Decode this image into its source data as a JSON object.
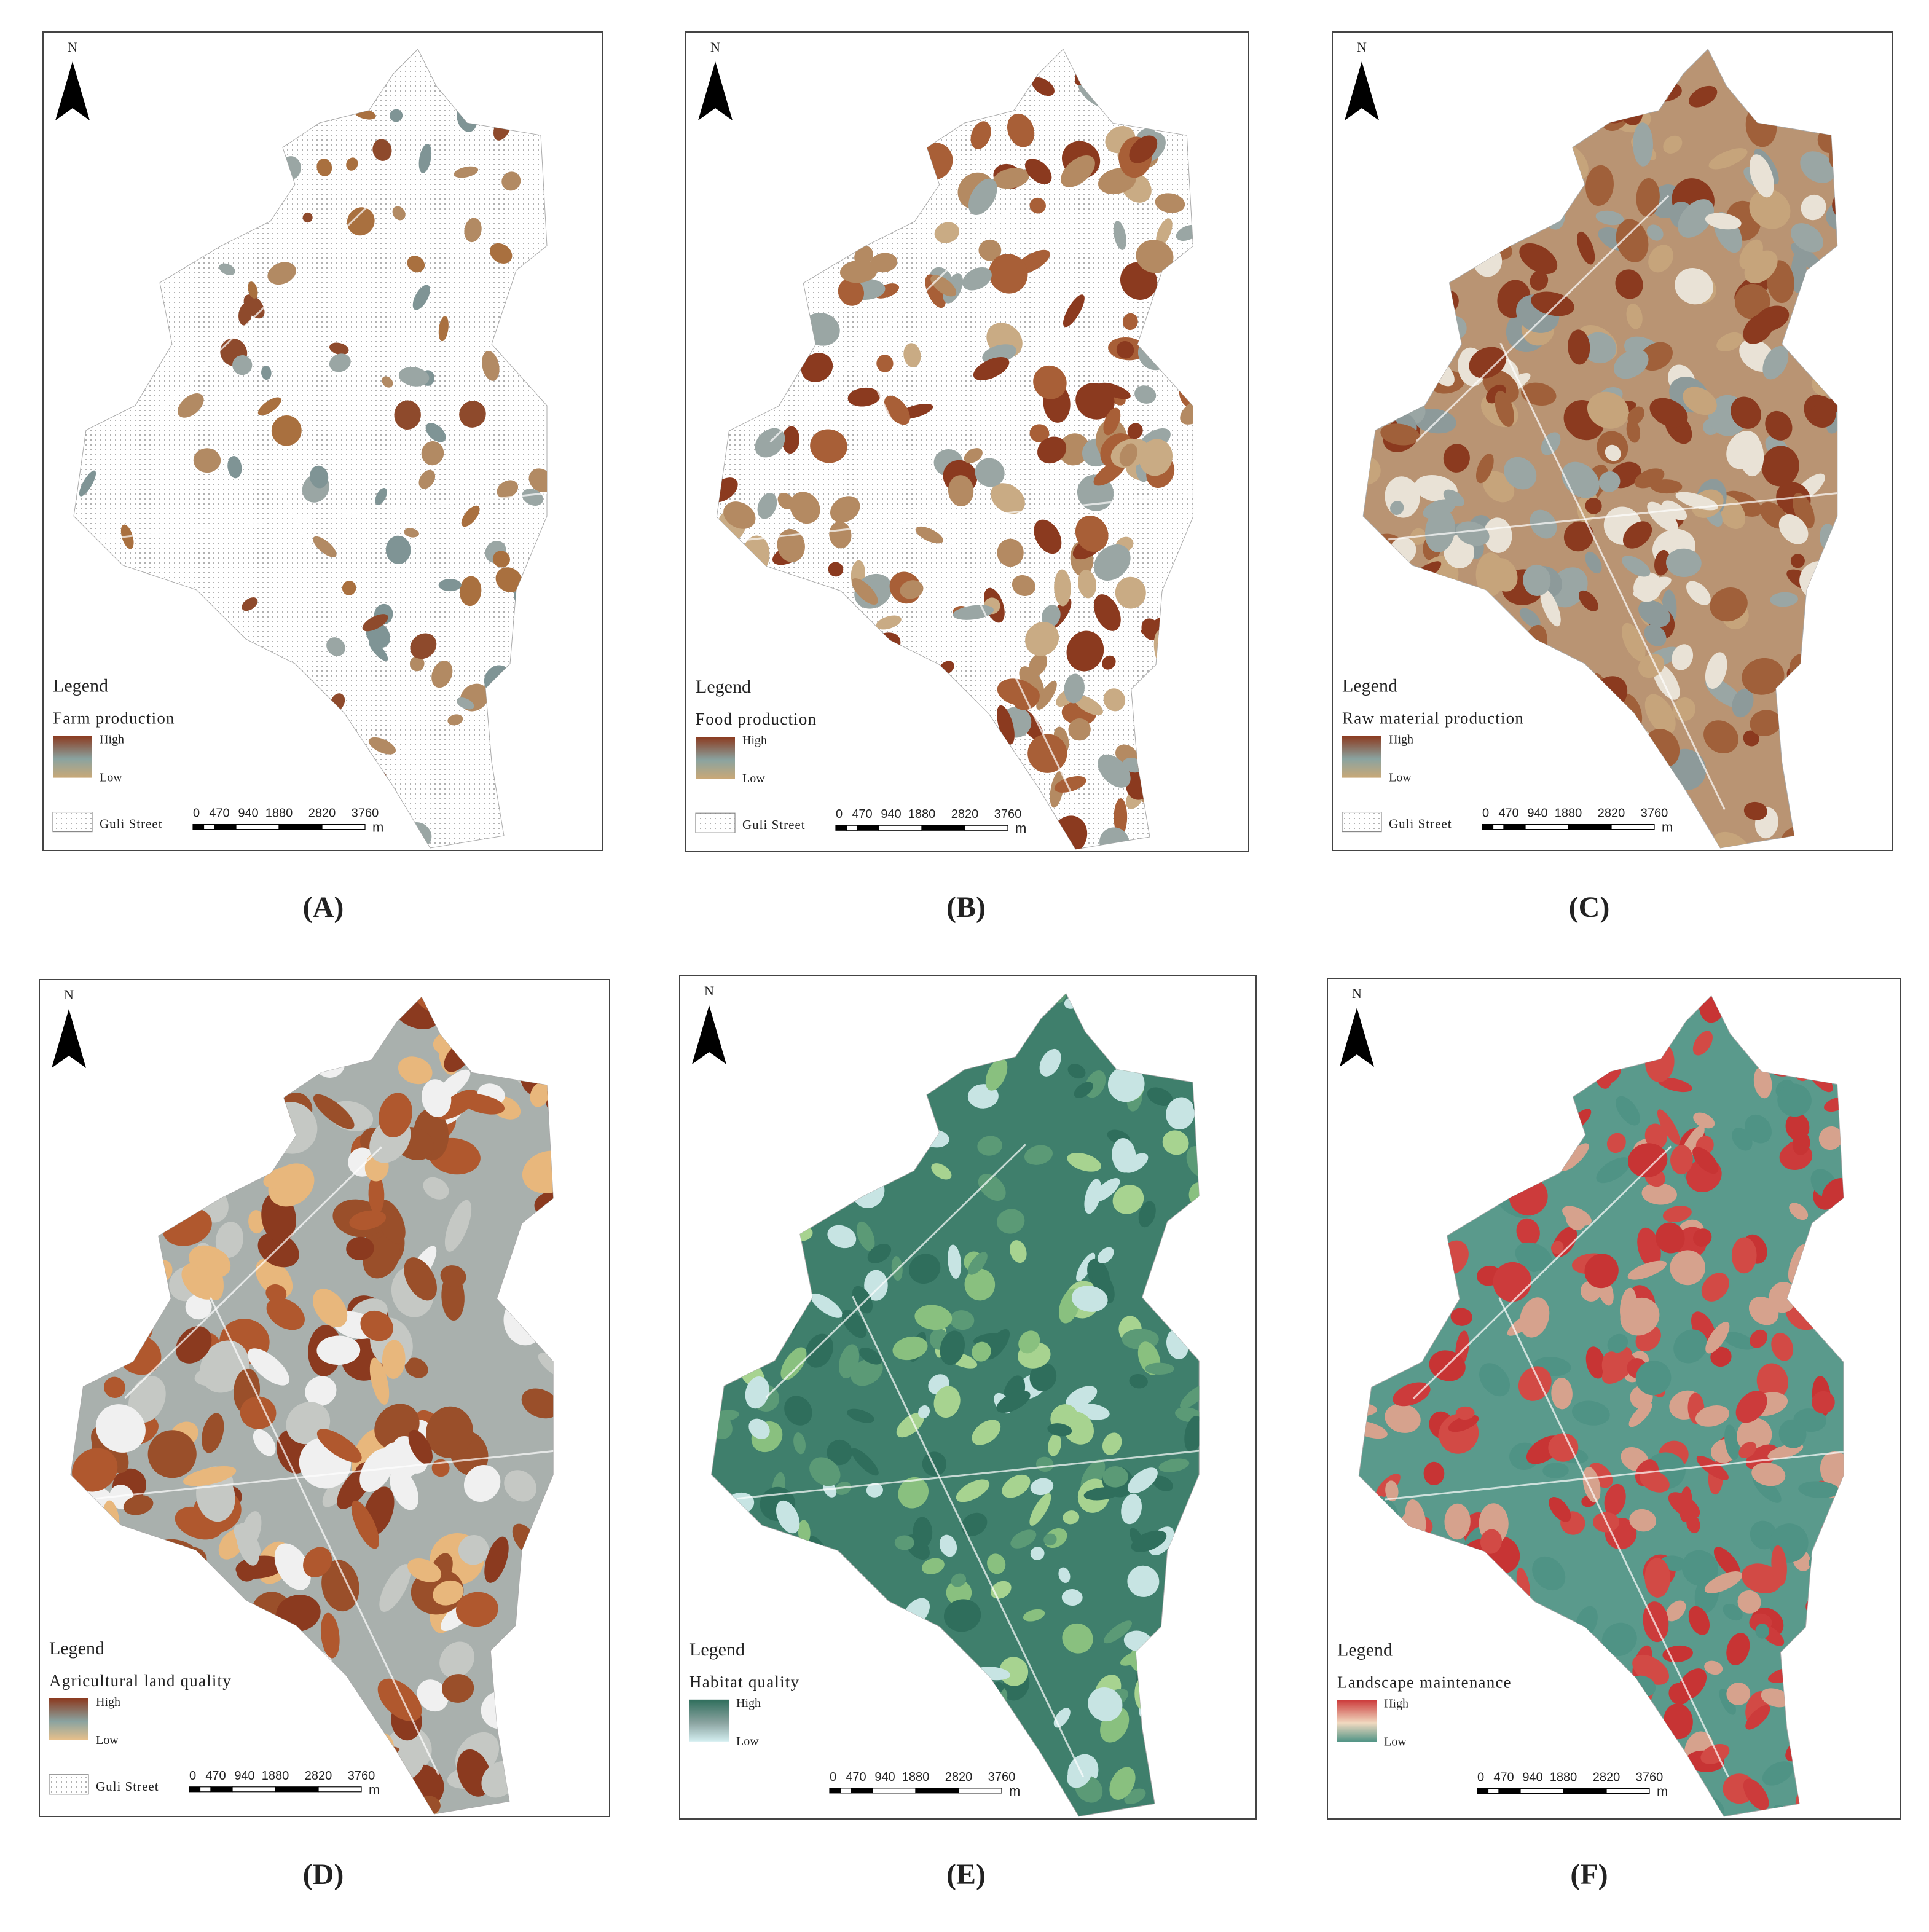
{
  "panels": [
    {
      "caption": "(A)",
      "north": "N",
      "legend": "Legend",
      "layer": "Farm production",
      "high": "High",
      "low": "Low",
      "boundary": "Guli Street",
      "scale": [
        "0",
        "470",
        "940",
        "1880",
        "2820",
        "3760"
      ],
      "unit": "m"
    },
    {
      "caption": "(B)",
      "north": "N",
      "legend": "Legend",
      "layer": "Food production",
      "high": "High",
      "low": "Low",
      "boundary": "Guli Street",
      "scale": [
        "0",
        "470",
        "940",
        "1880",
        "2820",
        "3760"
      ],
      "unit": "m"
    },
    {
      "caption": "(C)",
      "north": "N",
      "legend": "Legend",
      "layer": "Raw material production",
      "high": "High",
      "low": "Low",
      "boundary": "Guli Street",
      "scale": [
        "0",
        "470",
        "940",
        "1880",
        "2820",
        "3760"
      ],
      "unit": "m"
    },
    {
      "caption": "(D)",
      "north": "N",
      "legend": "Legend",
      "layer": "Agricultural land quality",
      "high": "High",
      "low": "Low",
      "boundary": "Guli Street",
      "scale": [
        "0",
        "470",
        "940",
        "1880",
        "2820",
        "3760"
      ],
      "unit": "m"
    },
    {
      "caption": "(E)",
      "north": "N",
      "legend": "Legend",
      "layer": "Habitat quality",
      "high": "High",
      "low": "Low",
      "scale": [
        "0",
        "470",
        "940",
        "1880",
        "2820",
        "3760"
      ],
      "unit": "m"
    },
    {
      "caption": "(F)",
      "north": "N",
      "legend": "Legend",
      "layer": "Landscape maintenance",
      "high": "High",
      "low": "Low",
      "scale": [
        "0",
        "470",
        "940",
        "1880",
        "2820",
        "3760"
      ],
      "unit": "m"
    }
  ]
}
